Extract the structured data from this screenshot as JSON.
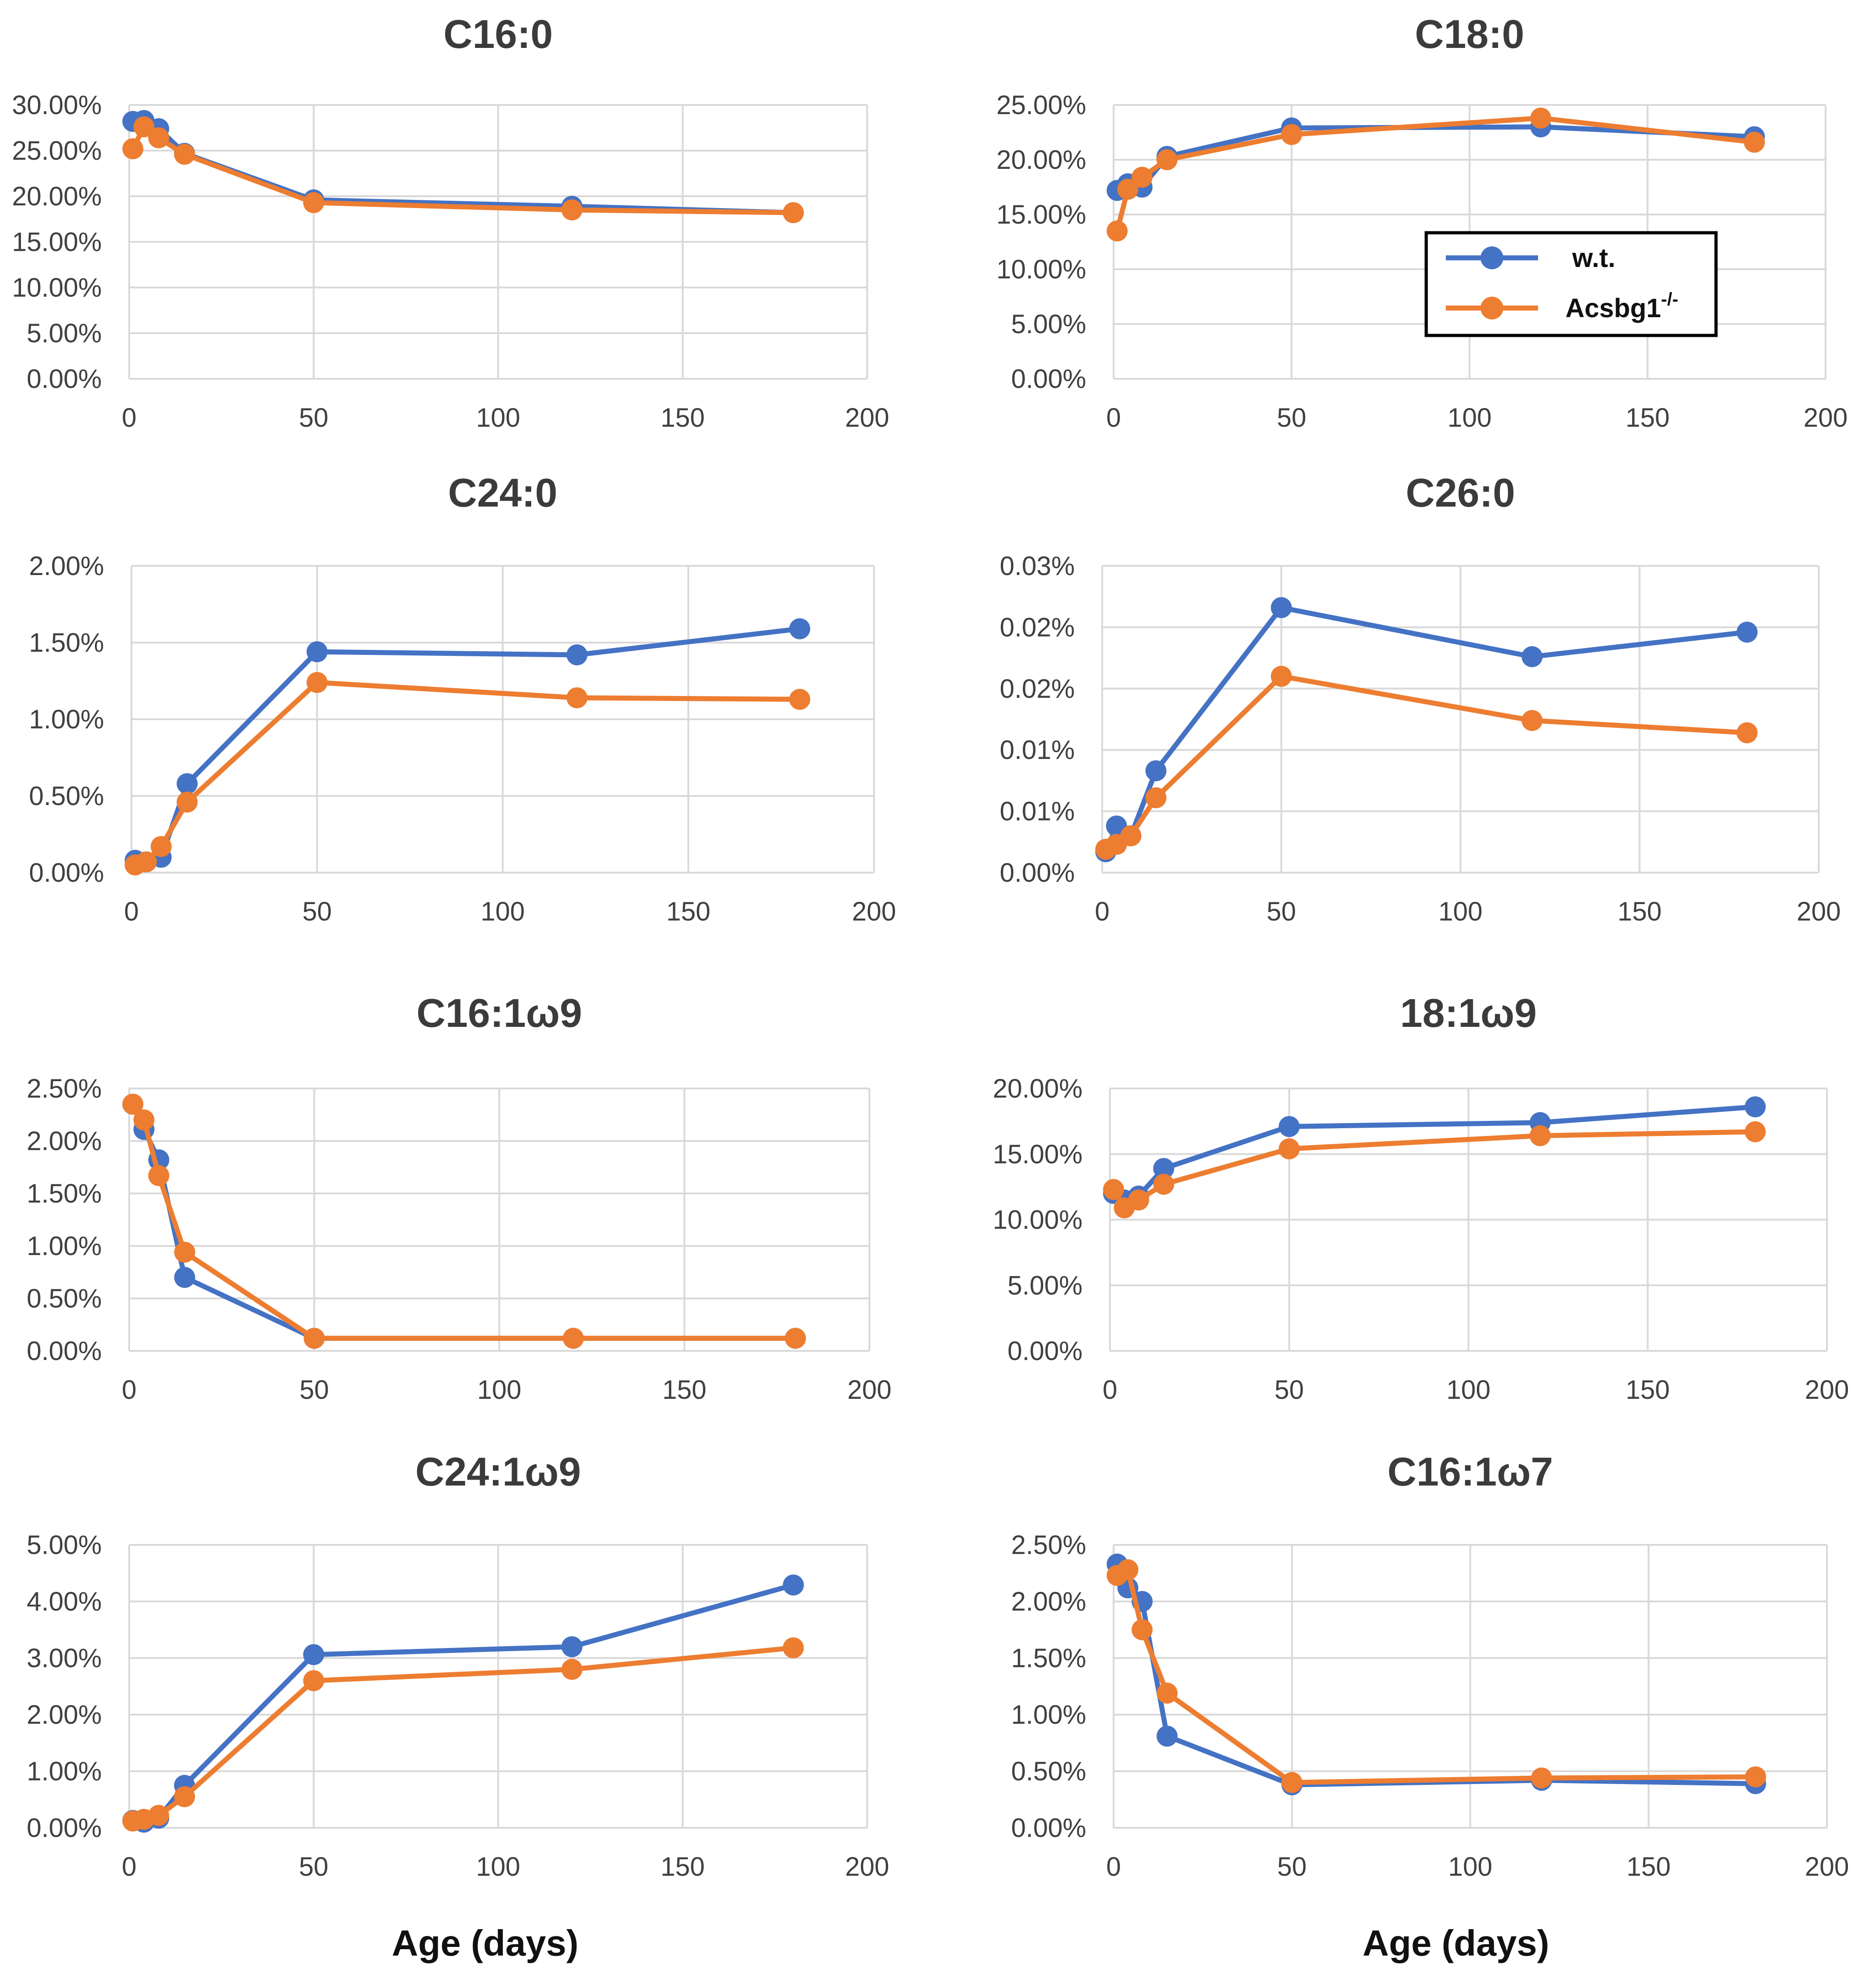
{
  "colors": {
    "wt": "#4472C4",
    "ko": "#ED7D31",
    "grid": "#D9D9D9"
  },
  "x_axis_label": "Age (days)",
  "legend": {
    "placement": "inside C18:0 panel, right",
    "wt": {
      "label": "w.t."
    },
    "ko": {
      "label_base": "Acsbg1",
      "label_sup": "-/-"
    }
  },
  "chart_data": [
    {
      "type": "line",
      "title": "C16:0",
      "x_ticks": [
        "0",
        "50",
        "100",
        "150",
        "200"
      ],
      "xlim": [
        0,
        200
      ],
      "y_ticks": [
        "0.00%",
        "5.00%",
        "10.00%",
        "15.00%",
        "20.00%",
        "25.00%",
        "30.00%"
      ],
      "ylim": [
        0,
        30
      ],
      "series": [
        {
          "name": "w.t.",
          "x": [
            1,
            4,
            8,
            15,
            50,
            120,
            180
          ],
          "values": [
            28.2,
            28.3,
            27.4,
            24.7,
            19.6,
            18.9,
            18.2
          ]
        },
        {
          "name": "Acsbg1-/-",
          "x": [
            1,
            4,
            8,
            15,
            50,
            120,
            180
          ],
          "values": [
            25.2,
            27.6,
            26.4,
            24.6,
            19.3,
            18.5,
            18.2
          ]
        }
      ]
    },
    {
      "type": "line",
      "title": "C18:0",
      "x_ticks": [
        "0",
        "50",
        "100",
        "150",
        "200"
      ],
      "xlim": [
        0,
        200
      ],
      "y_ticks": [
        "0.00%",
        "5.00%",
        "10.00%",
        "15.00%",
        "20.00%",
        "25.00%"
      ],
      "ylim": [
        0,
        25
      ],
      "series": [
        {
          "name": "w.t.",
          "x": [
            1,
            4,
            8,
            15,
            50,
            120,
            180
          ],
          "values": [
            17.2,
            17.8,
            17.5,
            20.3,
            22.9,
            23.0,
            22.1
          ]
        },
        {
          "name": "Acsbg1-/-",
          "x": [
            1,
            4,
            8,
            15,
            50,
            120,
            180
          ],
          "values": [
            13.5,
            17.3,
            18.4,
            20.0,
            22.3,
            23.8,
            21.6
          ]
        }
      ]
    },
    {
      "type": "line",
      "title": "C24:0",
      "x_ticks": [
        "0",
        "50",
        "100",
        "150",
        "200"
      ],
      "xlim": [
        0,
        200
      ],
      "y_ticks": [
        "0.00%",
        "0.50%",
        "1.00%",
        "1.50%",
        "2.00%"
      ],
      "ylim": [
        0,
        2
      ],
      "series": [
        {
          "name": "w.t.",
          "x": [
            1,
            4,
            8,
            15,
            50,
            120,
            180
          ],
          "values": [
            0.08,
            0.07,
            0.1,
            0.58,
            1.44,
            1.42,
            1.59
          ]
        },
        {
          "name": "Acsbg1-/-",
          "x": [
            1,
            4,
            8,
            15,
            50,
            120,
            180
          ],
          "values": [
            0.05,
            0.07,
            0.17,
            0.46,
            1.24,
            1.14,
            1.13
          ]
        }
      ]
    },
    {
      "type": "line",
      "title": "C26:0",
      "x_ticks": [
        "0",
        "50",
        "100",
        "150",
        "200"
      ],
      "xlim": [
        0,
        200
      ],
      "y_ticks": [
        "0.00%",
        "0.01%",
        "0.01%",
        "0.02%",
        "0.02%",
        "0.03%"
      ],
      "ylim": [
        0,
        0.025
      ],
      "series": [
        {
          "name": "w.t.",
          "x": [
            1,
            4,
            8,
            15,
            50,
            120,
            180
          ],
          "values": [
            0.0017,
            0.0038,
            0.003,
            0.0083,
            0.0216,
            0.0176,
            0.0196
          ]
        },
        {
          "name": "Acsbg1-/-",
          "x": [
            1,
            4,
            8,
            15,
            50,
            120,
            180
          ],
          "values": [
            0.0019,
            0.0023,
            0.003,
            0.0061,
            0.016,
            0.0124,
            0.0114
          ]
        }
      ]
    },
    {
      "type": "line",
      "title": "C16:1ω9",
      "x_ticks": [
        "0",
        "50",
        "100",
        "150",
        "200"
      ],
      "xlim": [
        0,
        200
      ],
      "y_ticks": [
        "0.00%",
        "0.50%",
        "1.00%",
        "1.50%",
        "2.00%",
        "2.50%"
      ],
      "ylim": [
        0,
        2.5
      ],
      "series": [
        {
          "name": "w.t.",
          "x": [
            1,
            4,
            8,
            15,
            50,
            120,
            180
          ],
          "values": [
            2.35,
            2.11,
            1.82,
            0.7,
            0.12,
            0.12,
            0.12
          ]
        },
        {
          "name": "Acsbg1-/-",
          "x": [
            1,
            4,
            8,
            15,
            50,
            120,
            180
          ],
          "values": [
            2.35,
            2.2,
            1.67,
            0.94,
            0.12,
            0.12,
            0.12
          ]
        }
      ]
    },
    {
      "type": "line",
      "title": "18:1ω9",
      "x_ticks": [
        "0",
        "50",
        "100",
        "150",
        "200"
      ],
      "xlim": [
        0,
        200
      ],
      "y_ticks": [
        "0.00%",
        "5.00%",
        "10.00%",
        "15.00%",
        "20.00%"
      ],
      "ylim": [
        0,
        20
      ],
      "series": [
        {
          "name": "w.t.",
          "x": [
            1,
            4,
            8,
            15,
            50,
            120,
            180
          ],
          "values": [
            12.0,
            11.5,
            11.8,
            13.9,
            17.1,
            17.4,
            18.6
          ]
        },
        {
          "name": "Acsbg1-/-",
          "x": [
            1,
            4,
            8,
            15,
            50,
            120,
            180
          ],
          "values": [
            12.3,
            10.9,
            11.5,
            12.7,
            15.4,
            16.4,
            16.7
          ]
        }
      ]
    },
    {
      "type": "line",
      "title": "C24:1ω9",
      "x_ticks": [
        "0",
        "50",
        "100",
        "150",
        "200"
      ],
      "xlim": [
        0,
        200
      ],
      "y_ticks": [
        "0.00%",
        "1.00%",
        "2.00%",
        "3.00%",
        "4.00%",
        "5.00%"
      ],
      "ylim": [
        0,
        5
      ],
      "series": [
        {
          "name": "w.t.",
          "x": [
            1,
            4,
            8,
            15,
            50,
            120,
            180
          ],
          "values": [
            0.13,
            0.1,
            0.17,
            0.75,
            3.06,
            3.2,
            4.29
          ]
        },
        {
          "name": "Acsbg1-/-",
          "x": [
            1,
            4,
            8,
            15,
            50,
            120,
            180
          ],
          "values": [
            0.12,
            0.15,
            0.22,
            0.55,
            2.6,
            2.8,
            3.18
          ]
        }
      ]
    },
    {
      "type": "line",
      "title": "C16:1ω7",
      "x_ticks": [
        "0",
        "50",
        "100",
        "150",
        "200"
      ],
      "xlim": [
        0,
        200
      ],
      "y_ticks": [
        "0.00%",
        "0.50%",
        "1.00%",
        "1.50%",
        "2.00%",
        "2.50%"
      ],
      "ylim": [
        0,
        2.5
      ],
      "series": [
        {
          "name": "w.t.",
          "x": [
            1,
            4,
            8,
            15,
            50,
            120,
            180
          ],
          "values": [
            2.33,
            2.12,
            2.0,
            0.81,
            0.38,
            0.42,
            0.39
          ]
        },
        {
          "name": "Acsbg1-/-",
          "x": [
            1,
            4,
            8,
            15,
            50,
            120,
            180
          ],
          "values": [
            2.23,
            2.28,
            1.75,
            1.19,
            0.4,
            0.44,
            0.45
          ]
        }
      ]
    }
  ]
}
